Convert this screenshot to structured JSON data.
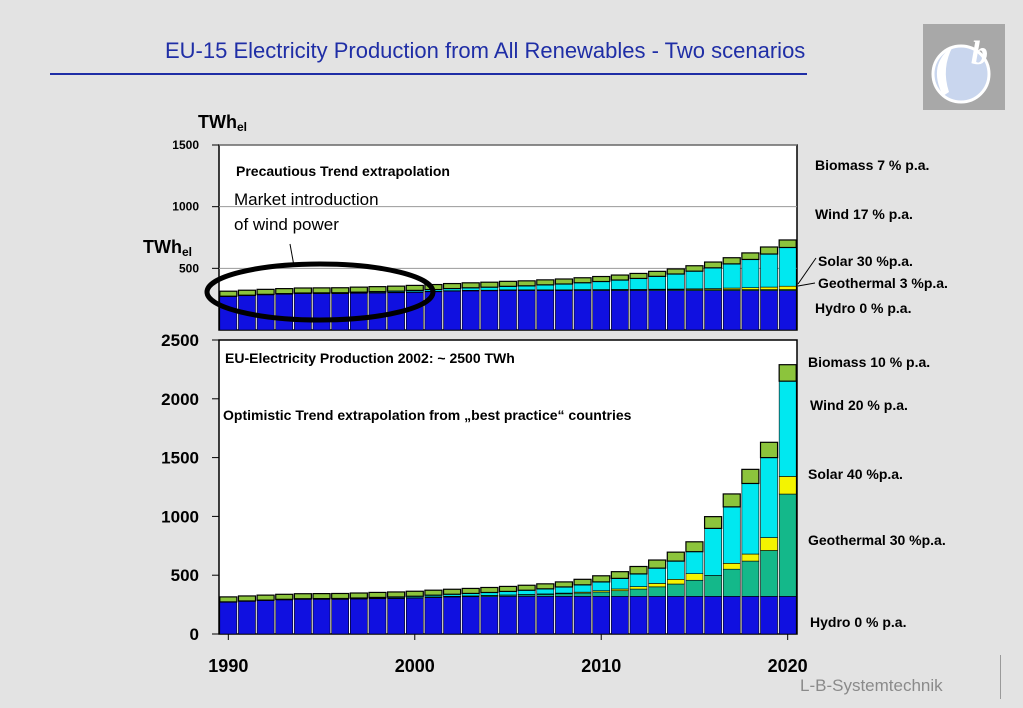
{
  "slide": {
    "title": "EU-15 Electricity Production from All Renewables - Two scenarios",
    "footer": "L-B-Systemtechnik",
    "colors": {
      "title": "#1f2ea6",
      "hydro": "#1010e0",
      "geothermal": "#14b88a",
      "solar": "#f4f400",
      "wind": "#00e8f0",
      "biomass": "#8cc43c"
    }
  },
  "chart_data": [
    {
      "type": "bar",
      "stacked": true,
      "title": "Precautious Trend extrapolation",
      "annotation": [
        "Market introduction",
        "of wind power"
      ],
      "ylabel_main": "TWh",
      "ylabel_sub": "el",
      "ylim": [
        0,
        1500
      ],
      "yticks": [
        500,
        1000,
        1500
      ],
      "grid": true,
      "x": [
        1990,
        1991,
        1992,
        1993,
        1994,
        1995,
        1996,
        1997,
        1998,
        1999,
        2000,
        2001,
        2002,
        2003,
        2004,
        2005,
        2006,
        2007,
        2008,
        2009,
        2010,
        2011,
        2012,
        2013,
        2014,
        2015,
        2016,
        2017,
        2018,
        2019,
        2020
      ],
      "series": [
        {
          "name": "Hydro  0 % p.a.",
          "key": "hydro",
          "values": [
            270,
            278,
            285,
            290,
            295,
            295,
            295,
            298,
            300,
            302,
            305,
            310,
            315,
            317,
            318,
            320,
            320,
            320,
            320,
            320,
            320,
            320,
            320,
            320,
            320,
            320,
            320,
            320,
            320,
            320,
            320
          ]
        },
        {
          "name": "Geothermal 3 %p.a.",
          "key": "geothermal",
          "values": [
            3,
            3,
            3,
            3,
            3,
            3,
            3,
            4,
            4,
            4,
            4,
            4,
            4,
            5,
            5,
            5,
            5,
            5,
            5,
            6,
            6,
            6,
            6,
            7,
            7,
            7,
            7,
            8,
            8,
            8,
            8
          ]
        },
        {
          "name": "Solar 30 %p.a.",
          "key": "solar",
          "values": [
            0,
            0,
            0,
            0,
            0,
            0,
            0,
            0,
            0,
            0,
            0,
            0,
            0,
            0,
            0,
            1,
            1,
            1,
            1,
            2,
            2,
            3,
            3,
            4,
            5,
            7,
            9,
            12,
            15,
            20,
            27
          ]
        },
        {
          "name": "Wind 17 % p.a.",
          "key": "wind",
          "values": [
            1,
            1,
            1,
            2,
            2,
            3,
            4,
            5,
            7,
            9,
            12,
            14,
            17,
            20,
            24,
            28,
            32,
            40,
            47,
            55,
            65,
            76,
            89,
            104,
            122,
            143,
            168,
            196,
            229,
            268,
            314
          ]
        },
        {
          "name": "Biomass  7 % p.a.",
          "key": "biomass",
          "values": [
            9,
            9,
            10,
            10,
            11,
            12,
            12,
            13,
            14,
            15,
            16,
            17,
            18,
            19,
            21,
            22,
            24,
            25,
            27,
            29,
            31,
            33,
            36,
            38,
            41,
            44,
            47,
            50,
            53,
            57,
            61
          ]
        }
      ]
    },
    {
      "type": "bar",
      "stacked": true,
      "title": "Optimistic Trend extrapolation from „best practice“ countries",
      "note": "EU-Electricity Production 2002: ~ 2500 TWh",
      "ylabel_main": "TWh",
      "ylabel_sub": "el",
      "ylim": [
        0,
        2500
      ],
      "yticks": [
        0,
        500,
        1000,
        1500,
        2000,
        2500
      ],
      "xticks": [
        1990,
        2000,
        2010,
        2020
      ],
      "grid": false,
      "x": [
        1990,
        1991,
        1992,
        1993,
        1994,
        1995,
        1996,
        1997,
        1998,
        1999,
        2000,
        2001,
        2002,
        2003,
        2004,
        2005,
        2006,
        2007,
        2008,
        2009,
        2010,
        2011,
        2012,
        2013,
        2014,
        2015,
        2016,
        2017,
        2018,
        2019,
        2020
      ],
      "series": [
        {
          "name": "Hydro 0 % p.a.",
          "key": "hydro",
          "values": [
            270,
            278,
            285,
            290,
            295,
            295,
            295,
            298,
            300,
            302,
            305,
            310,
            315,
            317,
            318,
            320,
            320,
            320,
            320,
            320,
            320,
            320,
            320,
            320,
            320,
            320,
            320,
            320,
            320,
            320,
            320
          ]
        },
        {
          "name": "Geothermal 30 %p.a.",
          "key": "geothermal",
          "values": [
            2,
            2,
            2,
            3,
            3,
            3,
            3,
            3,
            4,
            4,
            4,
            5,
            5,
            6,
            8,
            10,
            13,
            17,
            22,
            28,
            37,
            48,
            62,
            81,
            105,
            137,
            178,
            231,
            300,
            390,
            870
          ]
        },
        {
          "name": "Solar 40 %p.a.",
          "key": "solar",
          "values": [
            0,
            0,
            0,
            0,
            0,
            0,
            0,
            0,
            0,
            0,
            0,
            1,
            1,
            1,
            2,
            2,
            3,
            4,
            6,
            8,
            11,
            15,
            21,
            29,
            40,
            56,
            0,
            50,
            60,
            110,
            150
          ]
        },
        {
          "name": "Wind 20 % p.a.",
          "key": "wind",
          "values": [
            1,
            1,
            1,
            2,
            2,
            3,
            4,
            5,
            7,
            9,
            12,
            14,
            17,
            21,
            25,
            30,
            36,
            43,
            52,
            62,
            75,
            90,
            108,
            130,
            155,
            187,
            400,
            480,
            600,
            680,
            810
          ]
        },
        {
          "name": "Biomass  10 % p.a.",
          "key": "biomass",
          "values": [
            9,
            9,
            10,
            11,
            12,
            13,
            14,
            15,
            17,
            18,
            20,
            22,
            24,
            27,
            29,
            32,
            36,
            39,
            43,
            47,
            52,
            57,
            63,
            69,
            76,
            84,
            100,
            110,
            120,
            130,
            140
          ]
        }
      ]
    }
  ]
}
